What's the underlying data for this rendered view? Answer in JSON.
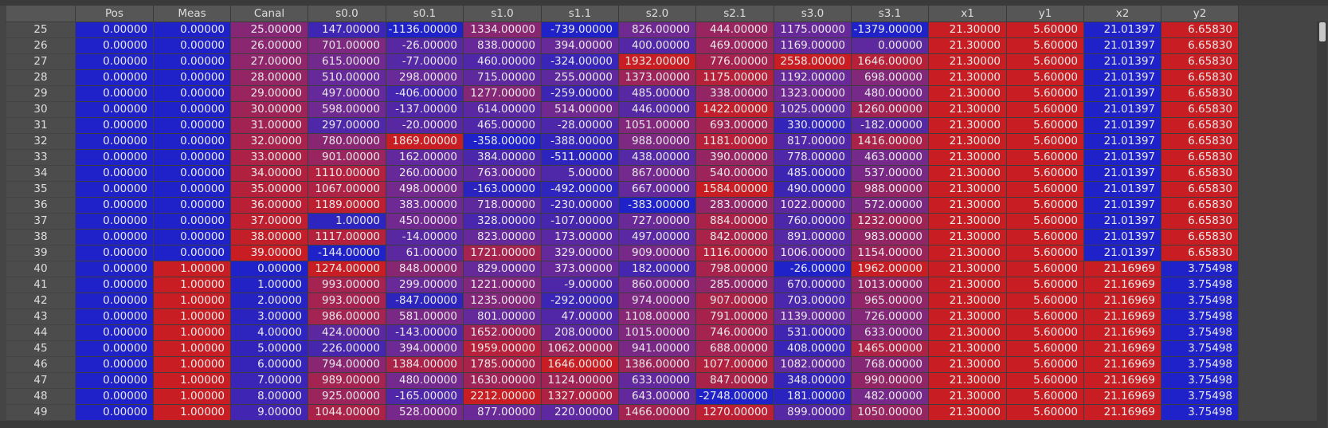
{
  "columns": [
    "",
    "Pos",
    "Meas",
    "Canal",
    "s0.0",
    "s0.1",
    "s1.0",
    "s1.1",
    "s2.0",
    "s2.1",
    "s3.0",
    "s3.1",
    "x1",
    "y1",
    "x2",
    "y2"
  ],
  "rows": [
    [
      "25",
      "0.00000",
      "0.00000",
      "25.00000",
      "147.00000",
      "-1136.00000",
      "1334.00000",
      "-739.00000",
      "826.00000",
      "444.00000",
      "1175.00000",
      "-1379.00000",
      "21.30000",
      "5.60000",
      "21.01397",
      "6.65830"
    ],
    [
      "26",
      "0.00000",
      "0.00000",
      "26.00000",
      "701.00000",
      "-26.00000",
      "838.00000",
      "394.00000",
      "400.00000",
      "469.00000",
      "1169.00000",
      "0.00000",
      "21.30000",
      "5.60000",
      "21.01397",
      "6.65830"
    ],
    [
      "27",
      "0.00000",
      "0.00000",
      "27.00000",
      "615.00000",
      "-77.00000",
      "460.00000",
      "-324.00000",
      "1932.00000",
      "776.00000",
      "2558.00000",
      "1646.00000",
      "21.30000",
      "5.60000",
      "21.01397",
      "6.65830"
    ],
    [
      "28",
      "0.00000",
      "0.00000",
      "28.00000",
      "510.00000",
      "298.00000",
      "715.00000",
      "255.00000",
      "1373.00000",
      "1175.00000",
      "1192.00000",
      "698.00000",
      "21.30000",
      "5.60000",
      "21.01397",
      "6.65830"
    ],
    [
      "29",
      "0.00000",
      "0.00000",
      "29.00000",
      "497.00000",
      "-406.00000",
      "1277.00000",
      "-259.00000",
      "485.00000",
      "338.00000",
      "1323.00000",
      "480.00000",
      "21.30000",
      "5.60000",
      "21.01397",
      "6.65830"
    ],
    [
      "30",
      "0.00000",
      "0.00000",
      "30.00000",
      "598.00000",
      "-137.00000",
      "614.00000",
      "514.00000",
      "446.00000",
      "1422.00000",
      "1025.00000",
      "1260.00000",
      "21.30000",
      "5.60000",
      "21.01397",
      "6.65830"
    ],
    [
      "31",
      "0.00000",
      "0.00000",
      "31.00000",
      "297.00000",
      "-20.00000",
      "465.00000",
      "-28.00000",
      "1051.00000",
      "693.00000",
      "330.00000",
      "-182.00000",
      "21.30000",
      "5.60000",
      "21.01397",
      "6.65830"
    ],
    [
      "32",
      "0.00000",
      "0.00000",
      "32.00000",
      "780.00000",
      "1869.00000",
      "-358.00000",
      "-388.00000",
      "988.00000",
      "1181.00000",
      "817.00000",
      "1416.00000",
      "21.30000",
      "5.60000",
      "21.01397",
      "6.65830"
    ],
    [
      "33",
      "0.00000",
      "0.00000",
      "33.00000",
      "901.00000",
      "162.00000",
      "384.00000",
      "-511.00000",
      "438.00000",
      "390.00000",
      "778.00000",
      "463.00000",
      "21.30000",
      "5.60000",
      "21.01397",
      "6.65830"
    ],
    [
      "34",
      "0.00000",
      "0.00000",
      "34.00000",
      "1110.00000",
      "260.00000",
      "763.00000",
      "5.00000",
      "867.00000",
      "540.00000",
      "485.00000",
      "537.00000",
      "21.30000",
      "5.60000",
      "21.01397",
      "6.65830"
    ],
    [
      "35",
      "0.00000",
      "0.00000",
      "35.00000",
      "1067.00000",
      "498.00000",
      "-163.00000",
      "-492.00000",
      "667.00000",
      "1584.00000",
      "490.00000",
      "988.00000",
      "21.30000",
      "5.60000",
      "21.01397",
      "6.65830"
    ],
    [
      "36",
      "0.00000",
      "0.00000",
      "36.00000",
      "1189.00000",
      "383.00000",
      "718.00000",
      "-230.00000",
      "-383.00000",
      "283.00000",
      "1022.00000",
      "572.00000",
      "21.30000",
      "5.60000",
      "21.01397",
      "6.65830"
    ],
    [
      "37",
      "0.00000",
      "0.00000",
      "37.00000",
      "1.00000",
      "450.00000",
      "328.00000",
      "-107.00000",
      "727.00000",
      "884.00000",
      "760.00000",
      "1232.00000",
      "21.30000",
      "5.60000",
      "21.01397",
      "6.65830"
    ],
    [
      "38",
      "0.00000",
      "0.00000",
      "38.00000",
      "1117.00000",
      "-14.00000",
      "823.00000",
      "173.00000",
      "497.00000",
      "842.00000",
      "891.00000",
      "983.00000",
      "21.30000",
      "5.60000",
      "21.01397",
      "6.65830"
    ],
    [
      "39",
      "0.00000",
      "0.00000",
      "39.00000",
      "-144.00000",
      "61.00000",
      "1721.00000",
      "329.00000",
      "909.00000",
      "1116.00000",
      "1006.00000",
      "1154.00000",
      "21.30000",
      "5.60000",
      "21.01397",
      "6.65830"
    ],
    [
      "40",
      "0.00000",
      "1.00000",
      "0.00000",
      "1274.00000",
      "848.00000",
      "829.00000",
      "373.00000",
      "182.00000",
      "798.00000",
      "-26.00000",
      "1962.00000",
      "21.30000",
      "5.60000",
      "21.16969",
      "3.75498"
    ],
    [
      "41",
      "0.00000",
      "1.00000",
      "1.00000",
      "993.00000",
      "299.00000",
      "1221.00000",
      "-9.00000",
      "860.00000",
      "285.00000",
      "670.00000",
      "1013.00000",
      "21.30000",
      "5.60000",
      "21.16969",
      "3.75498"
    ],
    [
      "42",
      "0.00000",
      "1.00000",
      "2.00000",
      "993.00000",
      "-847.00000",
      "1235.00000",
      "-292.00000",
      "974.00000",
      "907.00000",
      "703.00000",
      "965.00000",
      "21.30000",
      "5.60000",
      "21.16969",
      "3.75498"
    ],
    [
      "43",
      "0.00000",
      "1.00000",
      "3.00000",
      "986.00000",
      "581.00000",
      "801.00000",
      "47.00000",
      "1108.00000",
      "791.00000",
      "1139.00000",
      "726.00000",
      "21.30000",
      "5.60000",
      "21.16969",
      "3.75498"
    ],
    [
      "44",
      "0.00000",
      "1.00000",
      "4.00000",
      "424.00000",
      "-143.00000",
      "1652.00000",
      "208.00000",
      "1015.00000",
      "746.00000",
      "531.00000",
      "633.00000",
      "21.30000",
      "5.60000",
      "21.16969",
      "3.75498"
    ],
    [
      "45",
      "0.00000",
      "1.00000",
      "5.00000",
      "226.00000",
      "394.00000",
      "1959.00000",
      "1062.00000",
      "941.00000",
      "688.00000",
      "408.00000",
      "1465.00000",
      "21.30000",
      "5.60000",
      "21.16969",
      "3.75498"
    ],
    [
      "46",
      "0.00000",
      "1.00000",
      "6.00000",
      "794.00000",
      "1384.00000",
      "1785.00000",
      "1646.00000",
      "1386.00000",
      "1077.00000",
      "1082.00000",
      "768.00000",
      "21.30000",
      "5.60000",
      "21.16969",
      "3.75498"
    ],
    [
      "47",
      "0.00000",
      "1.00000",
      "7.00000",
      "989.00000",
      "480.00000",
      "1630.00000",
      "1124.00000",
      "633.00000",
      "847.00000",
      "348.00000",
      "990.00000",
      "21.30000",
      "5.60000",
      "21.16969",
      "3.75498"
    ],
    [
      "48",
      "0.00000",
      "1.00000",
      "8.00000",
      "925.00000",
      "-165.00000",
      "2212.00000",
      "1327.00000",
      "643.00000",
      "-2748.00000",
      "181.00000",
      "482.00000",
      "21.30000",
      "5.60000",
      "21.16969",
      "3.75498"
    ],
    [
      "49",
      "0.00000",
      "1.00000",
      "9.00000",
      "1044.00000",
      "528.00000",
      "877.00000",
      "220.00000",
      "1466.00000",
      "1270.00000",
      "899.00000",
      "1050.00000",
      "21.30000",
      "5.60000",
      "21.16969",
      "3.75498"
    ]
  ],
  "colors": {
    "low": "#1e22c8",
    "mid": "#6c2a96",
    "high": "#c81e23",
    "header_bg": "#565656",
    "index_bg": "#4c4c4c"
  }
}
